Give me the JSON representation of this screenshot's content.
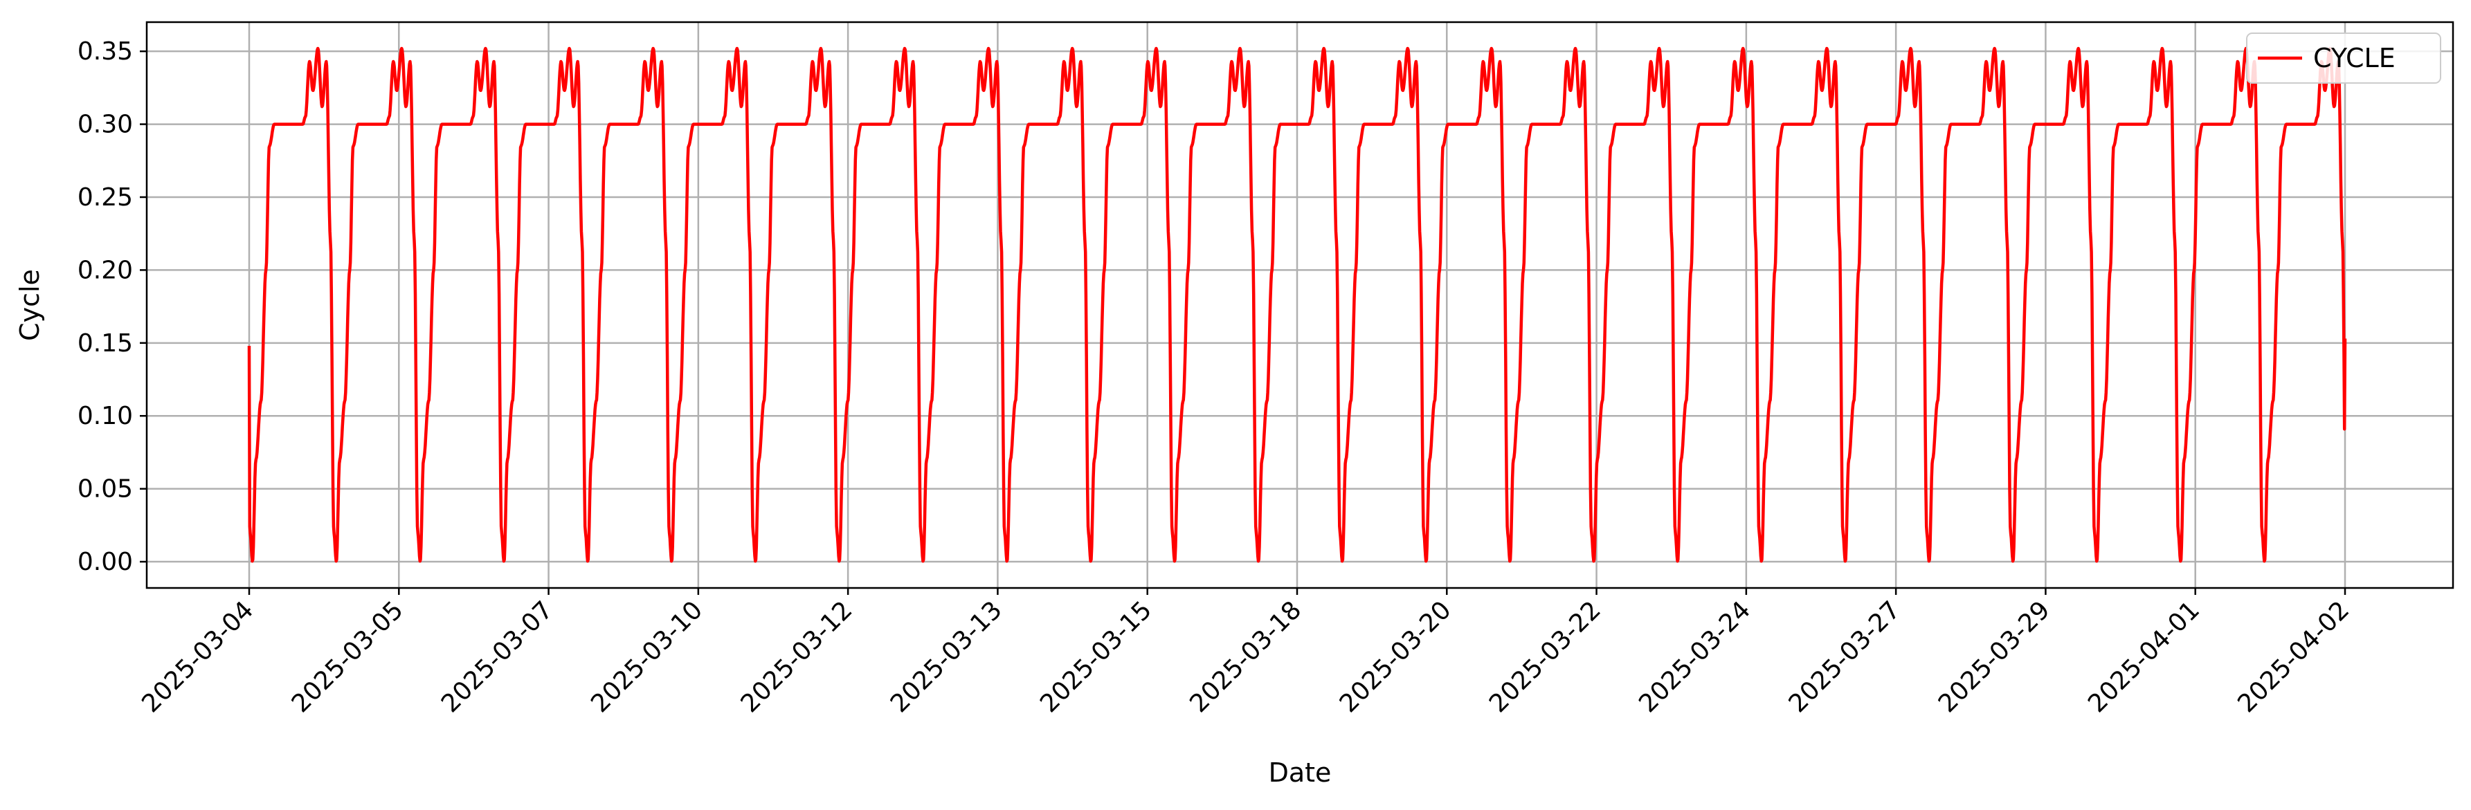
{
  "chart_data": {
    "type": "line",
    "title": "",
    "xlabel": "Date",
    "ylabel": "Cycle",
    "x_tick_labels": [
      "2025-03-04",
      "2025-03-05",
      "2025-03-07",
      "2025-03-10",
      "2025-03-12",
      "2025-03-13",
      "2025-03-15",
      "2025-03-18",
      "2025-03-20",
      "2025-03-22",
      "2025-03-24",
      "2025-03-27",
      "2025-03-29",
      "2025-04-01",
      "2025-04-02"
    ],
    "y_ticks": [
      0.0,
      0.05,
      0.1,
      0.15,
      0.2,
      0.25,
      0.3,
      0.35
    ],
    "y_tick_labels": [
      "0.00",
      "0.05",
      "0.10",
      "0.15",
      "0.20",
      "0.25",
      "0.30",
      "0.35"
    ],
    "ylim": [
      -0.018,
      0.37
    ],
    "grid": true,
    "legend_position": "top-right",
    "cycles_shown": 25,
    "series": [
      {
        "name": "CYCLE",
        "color": "#ff0000",
        "start_value": 0.148,
        "end_value": 0.153,
        "trough_value": 0.0,
        "plateau_value": 0.3,
        "peak_values": [
          0.343,
          0.352,
          0.343
        ],
        "dip_values": [
          0.32,
          0.312
        ]
      }
    ]
  }
}
